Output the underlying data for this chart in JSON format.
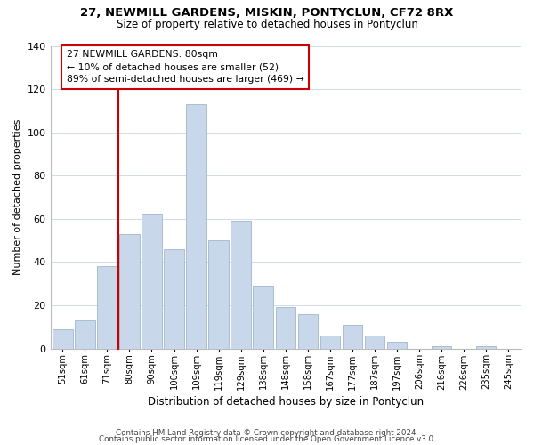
{
  "title1": "27, NEWMILL GARDENS, MISKIN, PONTYCLUN, CF72 8RX",
  "title2": "Size of property relative to detached houses in Pontyclun",
  "xlabel": "Distribution of detached houses by size in Pontyclun",
  "ylabel": "Number of detached properties",
  "bar_labels": [
    "51sqm",
    "61sqm",
    "71sqm",
    "80sqm",
    "90sqm",
    "100sqm",
    "109sqm",
    "119sqm",
    "129sqm",
    "138sqm",
    "148sqm",
    "158sqm",
    "167sqm",
    "177sqm",
    "187sqm",
    "197sqm",
    "206sqm",
    "216sqm",
    "226sqm",
    "235sqm",
    "245sqm"
  ],
  "bar_values": [
    9,
    13,
    38,
    53,
    62,
    46,
    113,
    50,
    59,
    29,
    19,
    16,
    6,
    11,
    6,
    3,
    0,
    1,
    0,
    1,
    0
  ],
  "bar_color": "#c8d8ea",
  "bar_edge_color": "#a0b8cc",
  "vline_color": "#cc0000",
  "vline_idx": 3,
  "annotation_title": "27 NEWMILL GARDENS: 80sqm",
  "annotation_line1": "← 10% of detached houses are smaller (52)",
  "annotation_line2": "89% of semi-detached houses are larger (469) →",
  "annotation_box_color": "#ffffff",
  "annotation_box_edge": "#cc0000",
  "ylim": [
    0,
    140
  ],
  "yticks": [
    0,
    20,
    40,
    60,
    80,
    100,
    120,
    140
  ],
  "footer1": "Contains HM Land Registry data © Crown copyright and database right 2024.",
  "footer2": "Contains public sector information licensed under the Open Government Licence v3.0.",
  "bg_color": "#ffffff",
  "grid_color": "#d0dce8"
}
